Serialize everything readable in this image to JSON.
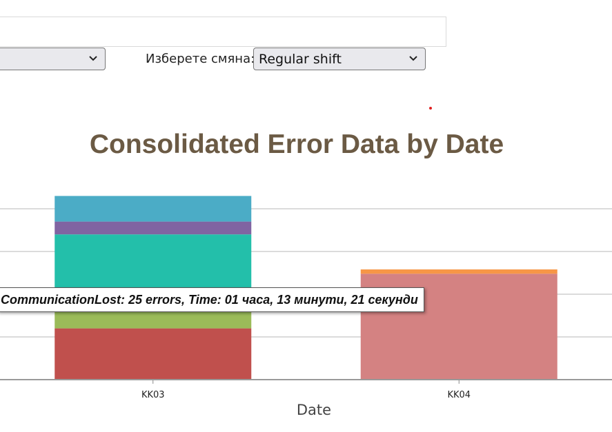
{
  "filters": {
    "left_select_value": "",
    "shift_label": "Изберете смяна:",
    "shift_value": "Regular shift"
  },
  "tooltip": {
    "text": "CommunicationLost: 25 errors, Time: 01 часа, 13 минути, 21 секунди"
  },
  "chart_data": {
    "type": "bar",
    "stacked": true,
    "title": "Consolidated Error Data by Date",
    "xlabel": "Date",
    "ylabel": "",
    "categories": [
      "KK03",
      "KK04"
    ],
    "ylim": [
      0,
      22
    ],
    "grid": true,
    "series": [
      {
        "color": "#c0504d",
        "values": [
          6,
          0
        ]
      },
      {
        "color": "#9bbb59",
        "values": [
          2,
          0
        ]
      },
      {
        "color": "#e8e8e8",
        "values": [
          2.6,
          0
        ]
      },
      {
        "color": "#23bfaa",
        "values": [
          6.4,
          0
        ]
      },
      {
        "color": "#8064a2",
        "values": [
          1.5,
          0
        ]
      },
      {
        "color": "#4bacc6",
        "values": [
          3,
          0
        ]
      },
      {
        "color": "#d48282",
        "values": [
          0,
          12.4
        ]
      },
      {
        "color": "#f79646",
        "values": [
          0,
          0.5
        ]
      }
    ]
  }
}
